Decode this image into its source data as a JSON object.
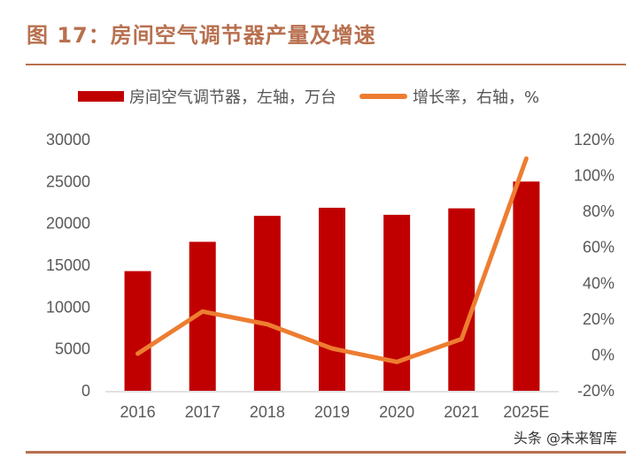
{
  "title": "图 17：房间空气调节器产量及增速",
  "watermark": "头条 @未来智库",
  "chart_data": {
    "type": "bar+line",
    "title": "图 17：房间空气调节器产量及增速",
    "categories": [
      "2016",
      "2017",
      "2018",
      "2019",
      "2020",
      "2021",
      "2025E"
    ],
    "series": [
      {
        "name": "房间空气调节器，左轴，万台",
        "type": "bar",
        "axis": "left",
        "color": "#C00000",
        "values": [
          14300,
          17800,
          20900,
          21870,
          21030,
          21800,
          25000
        ]
      },
      {
        "name": "增长率，右轴，%",
        "type": "line",
        "axis": "right",
        "color": "#ED7D31",
        "values": [
          0.7,
          24.2,
          17.1,
          3.6,
          -3.9,
          8.9,
          109.5
        ]
      }
    ],
    "left_axis": {
      "ylim": [
        0,
        30000
      ],
      "ticks": [
        "0",
        "5000",
        "10000",
        "15000",
        "20000",
        "25000",
        "30000"
      ]
    },
    "right_axis": {
      "ylim": [
        -20,
        120
      ],
      "ticks": [
        "-20%",
        "0%",
        "20%",
        "40%",
        "60%",
        "80%",
        "100%",
        "120%"
      ]
    },
    "legend": {
      "position": "top",
      "items": [
        "房间空气调节器，左轴，万台",
        "增长率，右轴，%"
      ]
    },
    "grid": false
  }
}
